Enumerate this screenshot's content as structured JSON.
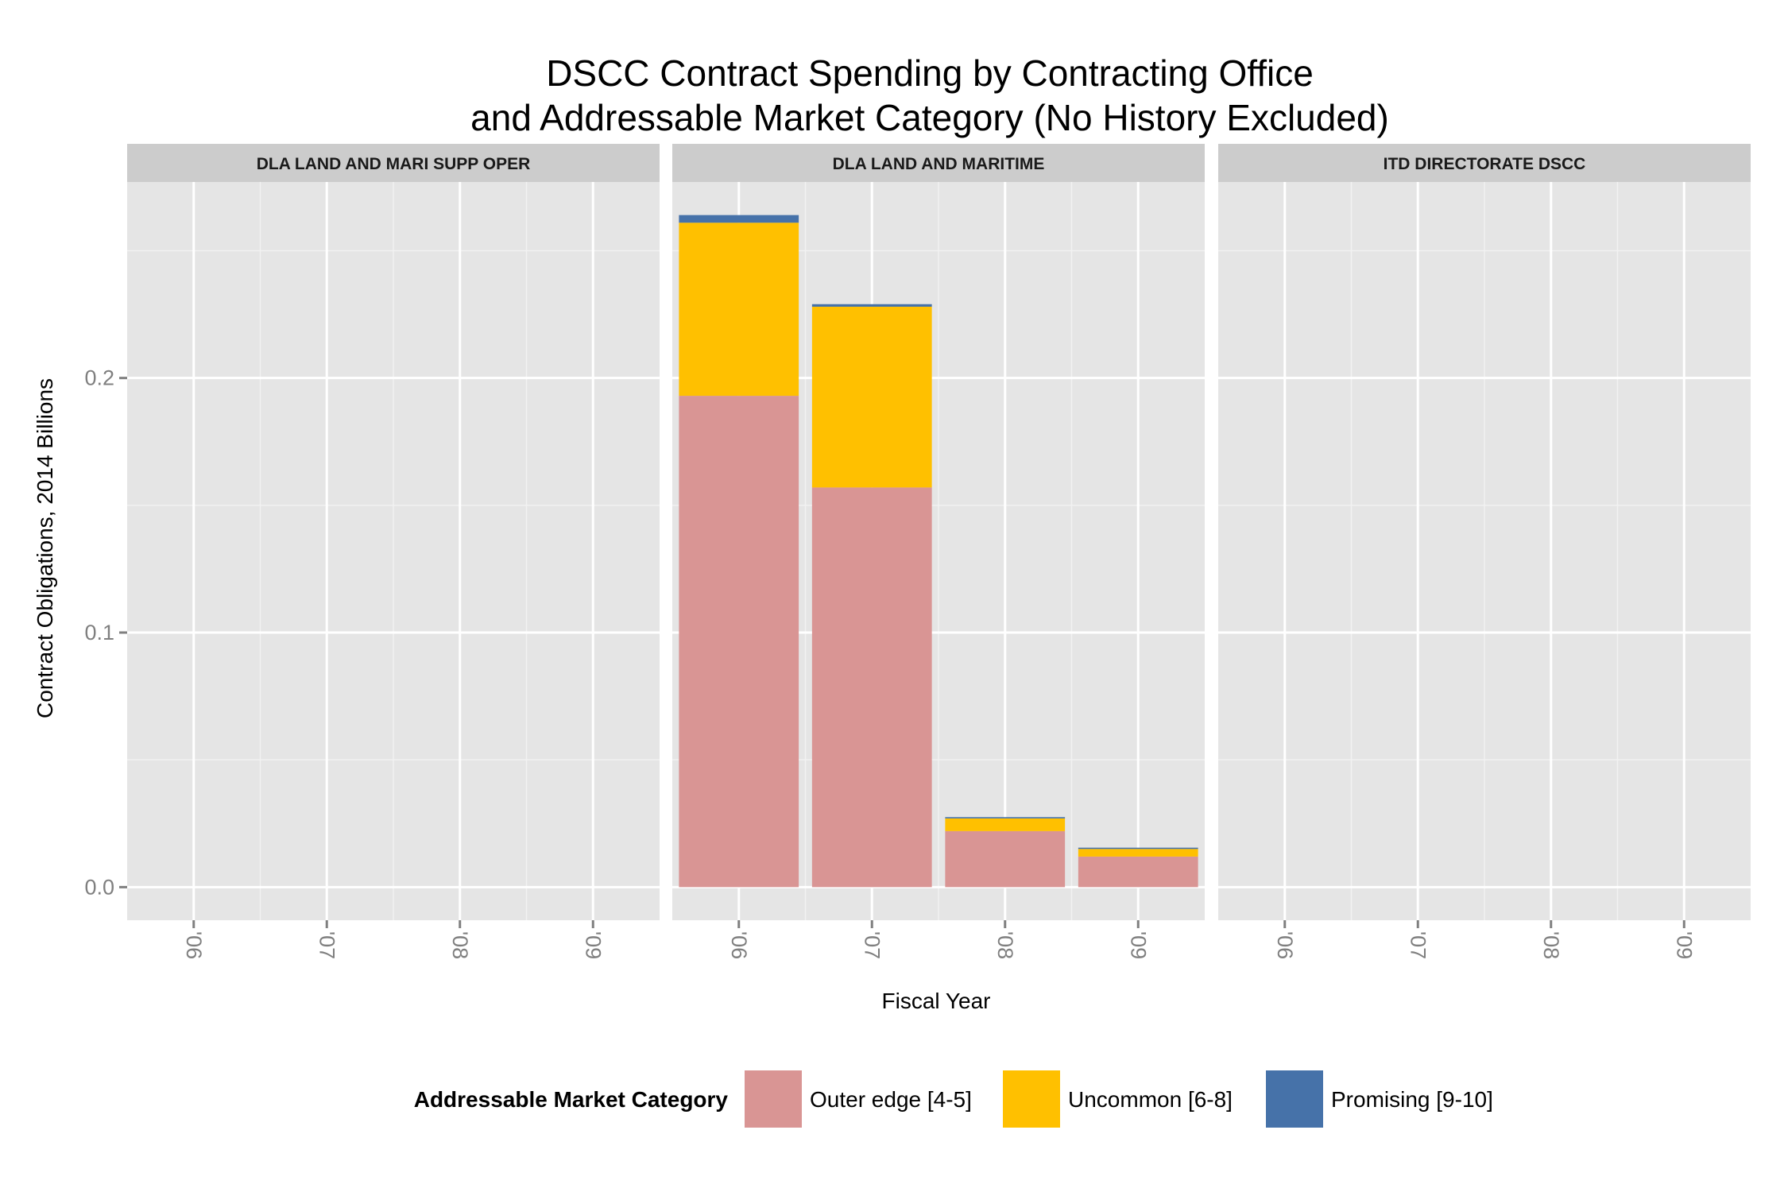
{
  "chart_data": {
    "type": "bar",
    "stacked": true,
    "title_line1": "DSCC Contract Spending by Contracting Office",
    "title_line2": "and Addressable Market Category (No History Excluded)",
    "xlabel": "Fiscal Year",
    "ylabel": "Contract Obligations, 2014 Billions",
    "ylim": [
      -0.013,
      0.277
    ],
    "yticks": [
      "0.0",
      "0.1",
      "0.2"
    ],
    "ytick_values": [
      0.0,
      0.1,
      0.2
    ],
    "categories": [
      "'06",
      "'07",
      "'08",
      "'09"
    ],
    "grid": true,
    "legend_position": "bottom",
    "legend_title": "Addressable Market Category",
    "colors": {
      "panel_bg": "#e5e5e5",
      "strip_bg": "#cccccc",
      "grid": "#ffffff"
    },
    "series": [
      {
        "name": "Outer edge [4-5]",
        "color": "#d99594"
      },
      {
        "name": "Uncommon [6-8]",
        "color": "#ffc000"
      },
      {
        "name": "Promising [9-10]",
        "color": "#4672a9"
      }
    ],
    "facets": [
      {
        "label": "DLA LAND AND MARI SUPP OPER",
        "values": [
          [
            0,
            0,
            0,
            0
          ],
          [
            0,
            0,
            0,
            0
          ],
          [
            0,
            0,
            0,
            0
          ]
        ]
      },
      {
        "label": "DLA LAND AND MARITIME",
        "values": [
          [
            0.193,
            0.157,
            0.022,
            0.012
          ],
          [
            0.068,
            0.071,
            0.005,
            0.003
          ],
          [
            0.003,
            0.001,
            0.0005,
            0.0005
          ]
        ]
      },
      {
        "label": "ITD DIRECTORATE DSCC",
        "values": [
          [
            0,
            0,
            0,
            0
          ],
          [
            0,
            0,
            0,
            0
          ],
          [
            0,
            0,
            0,
            0
          ]
        ]
      }
    ]
  }
}
